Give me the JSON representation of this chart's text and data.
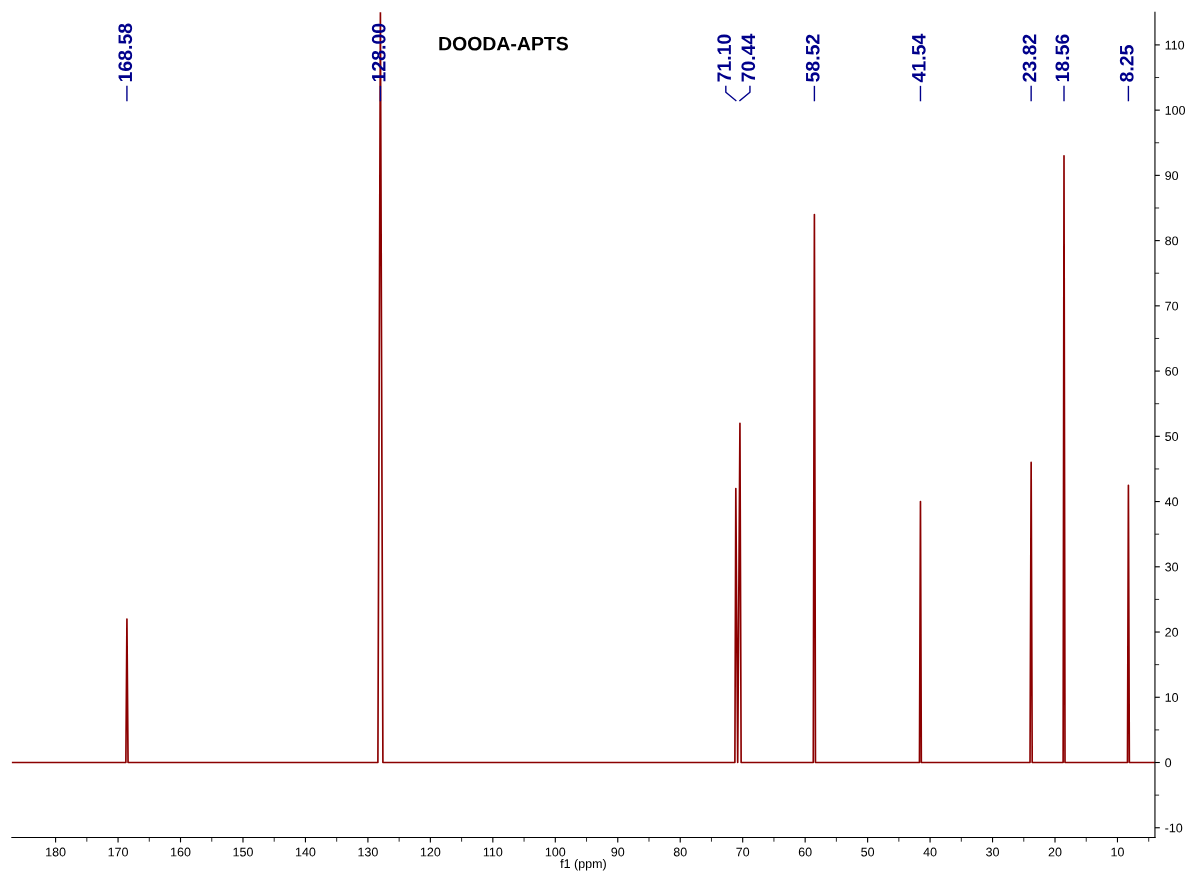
{
  "chart_data": {
    "type": "line",
    "title": "DOODA-APTS",
    "xlabel": "f1 (ppm)",
    "x": [
      187,
      168.75,
      168.58,
      168.4,
      128.4,
      128.0,
      127.6,
      71.25,
      71.1,
      70.8,
      70.44,
      70.25,
      58.7,
      58.52,
      58.35,
      41.7,
      41.54,
      41.4,
      24.0,
      23.82,
      23.65,
      18.7,
      18.56,
      18.4,
      8.4,
      8.25,
      8.1,
      4
    ],
    "series": [
      {
        "color": "#8b0000",
        "values": [
          0,
          0,
          22,
          0,
          0,
          115,
          0,
          0,
          42,
          0,
          52,
          0,
          0,
          84,
          0,
          0,
          40,
          0,
          0,
          46,
          0,
          0,
          93,
          0,
          0,
          42.5,
          0,
          0
        ]
      }
    ],
    "annotations": [
      {
        "text": "168.58",
        "x": 168.58
      },
      {
        "text": "128.00",
        "x": 128.0
      },
      {
        "text": "71.10",
        "x": 71.1
      },
      {
        "text": "70.44",
        "x": 70.44
      },
      {
        "text": "58.52",
        "x": 58.52
      },
      {
        "text": "41.54",
        "x": 41.54
      },
      {
        "text": "23.82",
        "x": 23.82
      },
      {
        "text": "18.56",
        "x": 18.56
      },
      {
        "text": "8.25",
        "x": 8.25
      }
    ],
    "xlim": [
      187,
      4
    ],
    "xticks": [
      180,
      170,
      160,
      150,
      140,
      130,
      120,
      110,
      100,
      90,
      80,
      70,
      60,
      50,
      40,
      30,
      20,
      10
    ],
    "ylim": [
      -11.5,
      115
    ],
    "yticks": [
      -10,
      0,
      10,
      20,
      30,
      40,
      50,
      60,
      70,
      80,
      90,
      100,
      110
    ],
    "grid": false,
    "legend": false
  }
}
